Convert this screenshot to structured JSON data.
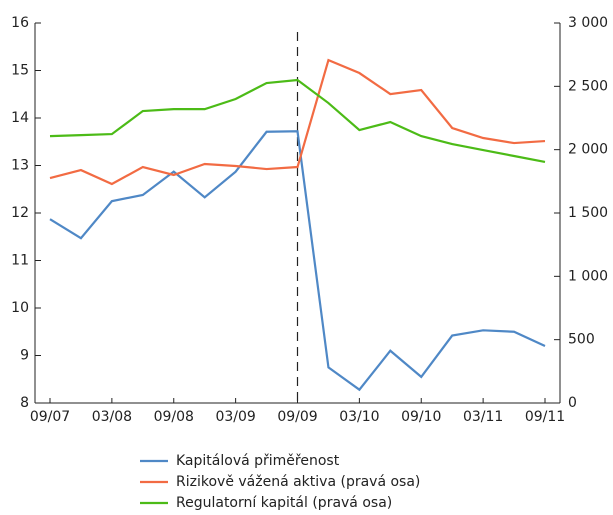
{
  "chart_data": {
    "type": "line",
    "categories": [
      "09/07",
      null,
      "03/08",
      null,
      "09/08",
      null,
      "03/09",
      null,
      "09/09",
      null,
      "03/10",
      null,
      "09/10",
      null,
      "03/11",
      null,
      "09/11"
    ],
    "ylim": [
      8,
      16
    ],
    "yticks": [
      8,
      9,
      10,
      11,
      12,
      13,
      14,
      15,
      16
    ],
    "y2lim": [
      0,
      3000
    ],
    "y2ticks": [
      0,
      500,
      {
        "value": 1000,
        "label": "1 000"
      },
      {
        "value": 1500,
        "label": "1 500"
      },
      {
        "value": 2000,
        "label": "2 000"
      },
      {
        "value": 2500,
        "label": "2 500"
      },
      {
        "value": 3000,
        "label": "3 000"
      }
    ],
    "series": [
      {
        "name": "Kapitálová přiměřenost",
        "color": "#4f88c6",
        "values": [
          11.87,
          11.47,
          12.25,
          12.38,
          12.87,
          12.33,
          12.87,
          13.71,
          13.72,
          8.75,
          8.28,
          9.1,
          8.55,
          9.42,
          9.53,
          9.5,
          9.2
        ]
      },
      {
        "name": "Rizikově vážená aktiva (pravá osa)",
        "color": "#f26b43",
        "axis": "y2",
        "values": [
          1776,
          1839,
          1729,
          1863,
          1800,
          1887,
          1871,
          1847,
          1863,
          2707,
          2605,
          2439,
          2471,
          2171,
          2092,
          2052,
          2068
        ]
      },
      {
        "name": "Regulatorní kapitál (pravá osa)",
        "color": "#4cbb17",
        "axis": "y2",
        "values": [
          2107,
          2115,
          2123,
          2305,
          2320,
          2320,
          2400,
          2526,
          2550,
          2368,
          2155,
          2218,
          2107,
          2044,
          1997,
          1950,
          1903
        ]
      }
    ]
  }
}
